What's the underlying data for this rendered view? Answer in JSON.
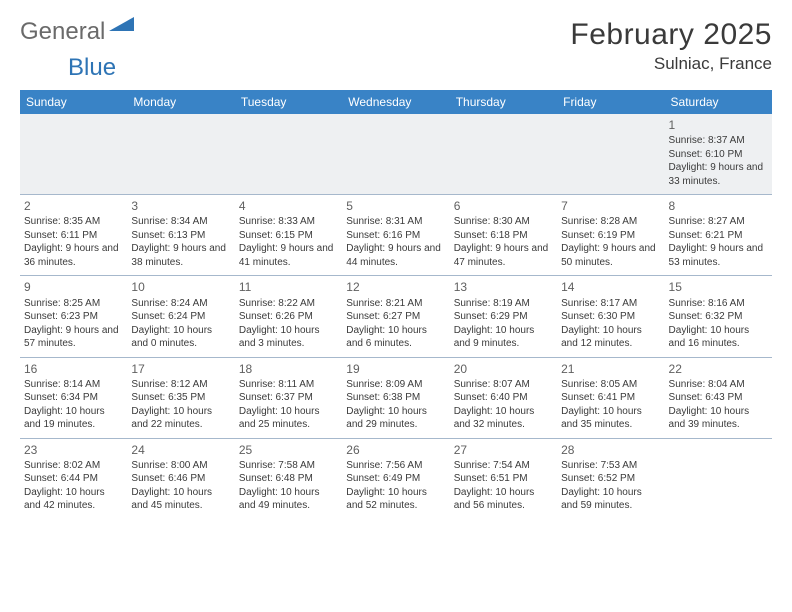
{
  "logo": {
    "text1": "General",
    "text2": "Blue"
  },
  "title": "February 2025",
  "location": "Sulniac, France",
  "colors": {
    "header_bg": "#3983c6",
    "header_text": "#ffffff",
    "logo_gray": "#6a6a6a",
    "logo_blue": "#2e74b5",
    "body_text": "#3a3a3a",
    "daynum": "#606060",
    "rule": "#a6b8cc",
    "stripe": "#eef0f2"
  },
  "weekdays": [
    "Sunday",
    "Monday",
    "Tuesday",
    "Wednesday",
    "Thursday",
    "Friday",
    "Saturday"
  ],
  "weeks": [
    [
      null,
      null,
      null,
      null,
      null,
      null,
      {
        "d": "1",
        "rise": "Sunrise: 8:37 AM",
        "set": "Sunset: 6:10 PM",
        "day": "Daylight: 9 hours and 33 minutes."
      }
    ],
    [
      {
        "d": "2",
        "rise": "Sunrise: 8:35 AM",
        "set": "Sunset: 6:11 PM",
        "day": "Daylight: 9 hours and 36 minutes."
      },
      {
        "d": "3",
        "rise": "Sunrise: 8:34 AM",
        "set": "Sunset: 6:13 PM",
        "day": "Daylight: 9 hours and 38 minutes."
      },
      {
        "d": "4",
        "rise": "Sunrise: 8:33 AM",
        "set": "Sunset: 6:15 PM",
        "day": "Daylight: 9 hours and 41 minutes."
      },
      {
        "d": "5",
        "rise": "Sunrise: 8:31 AM",
        "set": "Sunset: 6:16 PM",
        "day": "Daylight: 9 hours and 44 minutes."
      },
      {
        "d": "6",
        "rise": "Sunrise: 8:30 AM",
        "set": "Sunset: 6:18 PM",
        "day": "Daylight: 9 hours and 47 minutes."
      },
      {
        "d": "7",
        "rise": "Sunrise: 8:28 AM",
        "set": "Sunset: 6:19 PM",
        "day": "Daylight: 9 hours and 50 minutes."
      },
      {
        "d": "8",
        "rise": "Sunrise: 8:27 AM",
        "set": "Sunset: 6:21 PM",
        "day": "Daylight: 9 hours and 53 minutes."
      }
    ],
    [
      {
        "d": "9",
        "rise": "Sunrise: 8:25 AM",
        "set": "Sunset: 6:23 PM",
        "day": "Daylight: 9 hours and 57 minutes."
      },
      {
        "d": "10",
        "rise": "Sunrise: 8:24 AM",
        "set": "Sunset: 6:24 PM",
        "day": "Daylight: 10 hours and 0 minutes."
      },
      {
        "d": "11",
        "rise": "Sunrise: 8:22 AM",
        "set": "Sunset: 6:26 PM",
        "day": "Daylight: 10 hours and 3 minutes."
      },
      {
        "d": "12",
        "rise": "Sunrise: 8:21 AM",
        "set": "Sunset: 6:27 PM",
        "day": "Daylight: 10 hours and 6 minutes."
      },
      {
        "d": "13",
        "rise": "Sunrise: 8:19 AM",
        "set": "Sunset: 6:29 PM",
        "day": "Daylight: 10 hours and 9 minutes."
      },
      {
        "d": "14",
        "rise": "Sunrise: 8:17 AM",
        "set": "Sunset: 6:30 PM",
        "day": "Daylight: 10 hours and 12 minutes."
      },
      {
        "d": "15",
        "rise": "Sunrise: 8:16 AM",
        "set": "Sunset: 6:32 PM",
        "day": "Daylight: 10 hours and 16 minutes."
      }
    ],
    [
      {
        "d": "16",
        "rise": "Sunrise: 8:14 AM",
        "set": "Sunset: 6:34 PM",
        "day": "Daylight: 10 hours and 19 minutes."
      },
      {
        "d": "17",
        "rise": "Sunrise: 8:12 AM",
        "set": "Sunset: 6:35 PM",
        "day": "Daylight: 10 hours and 22 minutes."
      },
      {
        "d": "18",
        "rise": "Sunrise: 8:11 AM",
        "set": "Sunset: 6:37 PM",
        "day": "Daylight: 10 hours and 25 minutes."
      },
      {
        "d": "19",
        "rise": "Sunrise: 8:09 AM",
        "set": "Sunset: 6:38 PM",
        "day": "Daylight: 10 hours and 29 minutes."
      },
      {
        "d": "20",
        "rise": "Sunrise: 8:07 AM",
        "set": "Sunset: 6:40 PM",
        "day": "Daylight: 10 hours and 32 minutes."
      },
      {
        "d": "21",
        "rise": "Sunrise: 8:05 AM",
        "set": "Sunset: 6:41 PM",
        "day": "Daylight: 10 hours and 35 minutes."
      },
      {
        "d": "22",
        "rise": "Sunrise: 8:04 AM",
        "set": "Sunset: 6:43 PM",
        "day": "Daylight: 10 hours and 39 minutes."
      }
    ],
    [
      {
        "d": "23",
        "rise": "Sunrise: 8:02 AM",
        "set": "Sunset: 6:44 PM",
        "day": "Daylight: 10 hours and 42 minutes."
      },
      {
        "d": "24",
        "rise": "Sunrise: 8:00 AM",
        "set": "Sunset: 6:46 PM",
        "day": "Daylight: 10 hours and 45 minutes."
      },
      {
        "d": "25",
        "rise": "Sunrise: 7:58 AM",
        "set": "Sunset: 6:48 PM",
        "day": "Daylight: 10 hours and 49 minutes."
      },
      {
        "d": "26",
        "rise": "Sunrise: 7:56 AM",
        "set": "Sunset: 6:49 PM",
        "day": "Daylight: 10 hours and 52 minutes."
      },
      {
        "d": "27",
        "rise": "Sunrise: 7:54 AM",
        "set": "Sunset: 6:51 PM",
        "day": "Daylight: 10 hours and 56 minutes."
      },
      {
        "d": "28",
        "rise": "Sunrise: 7:53 AM",
        "set": "Sunset: 6:52 PM",
        "day": "Daylight: 10 hours and 59 minutes."
      },
      null
    ]
  ]
}
